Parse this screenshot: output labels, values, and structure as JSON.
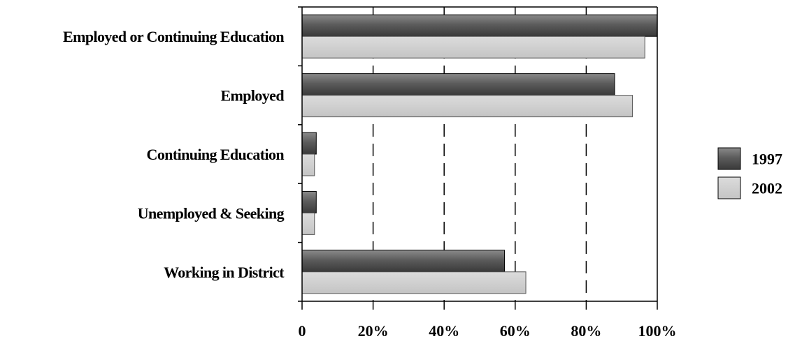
{
  "chart_data": {
    "type": "bar",
    "orientation": "horizontal",
    "title": "",
    "xlabel": "",
    "ylabel": "",
    "categories": [
      "Employed or Continuing Education",
      "Employed",
      "Continuing Education",
      "Unemployed & Seeking",
      "Working in District"
    ],
    "series": [
      {
        "name": "1997",
        "color": "#5f5f5f",
        "values": [
          100,
          88,
          4,
          4,
          57
        ]
      },
      {
        "name": "2002",
        "color": "#cccccc",
        "values": [
          96.5,
          93,
          3.5,
          3.5,
          63
        ]
      }
    ],
    "x_ticks": [
      "0",
      "20%",
      "40%",
      "60%",
      "80%",
      "100%"
    ],
    "xlim": [
      0,
      100
    ],
    "grid": "vertical dashed",
    "legend_position": "right"
  }
}
